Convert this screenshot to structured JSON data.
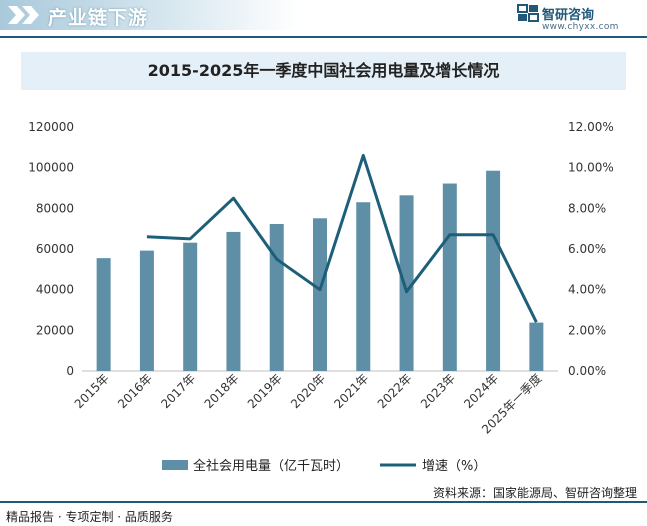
{
  "header": {
    "title": "产业链下游",
    "brand_name": "智研咨询",
    "brand_url": "www.chyxx.com"
  },
  "colors": {
    "bar": "#5e8fa6",
    "line": "#1d5f79",
    "accent": "#1f5878",
    "title_bg": "#e4eff7"
  },
  "chart_data": {
    "type": "bar",
    "title": "2015-2025年一季度中国社会用电量及增长情况",
    "categories": [
      "2015年",
      "2016年",
      "2017年",
      "2018年",
      "2019年",
      "2020年",
      "2021年",
      "2022年",
      "2023年",
      "2024年",
      "2025年一季度"
    ],
    "series": [
      {
        "name": "全社会用电量（亿千瓦时）",
        "type": "bar",
        "axis": "left",
        "values": [
          55500,
          59200,
          63100,
          68400,
          72300,
          75100,
          83000,
          86400,
          92200,
          98500,
          23800
        ]
      },
      {
        "name": "增速（%）",
        "type": "line",
        "axis": "right",
        "values": [
          null,
          6.6,
          6.5,
          8.5,
          5.5,
          4.0,
          10.6,
          3.9,
          6.7,
          6.7,
          2.4
        ]
      }
    ],
    "y_left": {
      "min": 0,
      "max": 120000,
      "ticks": [
        "0",
        "20000",
        "40000",
        "60000",
        "80000",
        "100000",
        "120000"
      ]
    },
    "y_right": {
      "min": 0,
      "max": 12,
      "ticks": [
        "0.00%",
        "2.00%",
        "4.00%",
        "6.00%",
        "8.00%",
        "10.00%",
        "12.00%"
      ]
    },
    "grid": false,
    "legend_position": "bottom"
  },
  "footer": {
    "source": "资料来源：国家能源局、智研咨询整理",
    "slogan": "精品报告 · 专项定制 · 品质服务"
  }
}
